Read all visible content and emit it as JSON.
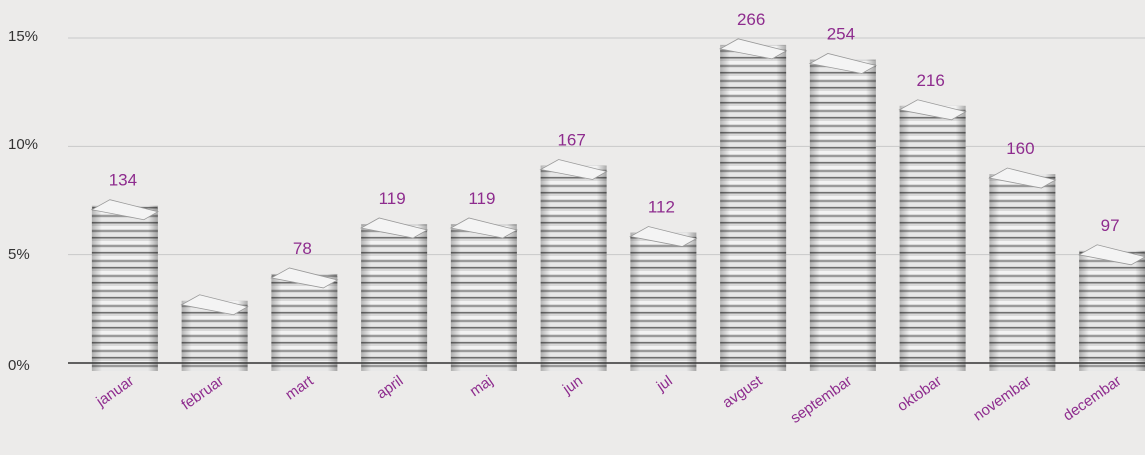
{
  "chart_data": {
    "type": "bar",
    "categories": [
      "januar",
      "februar",
      "mart",
      "april",
      "maj",
      "jun",
      "jul",
      "avgust",
      "septembar",
      "oktobar",
      "novembar",
      "decembar"
    ],
    "values": [
      134,
      56,
      78,
      119,
      119,
      167,
      112,
      266,
      254,
      216,
      160,
      97
    ],
    "labels": [
      "134",
      "",
      "78",
      "119",
      "119",
      "167",
      "112",
      "266",
      "254",
      "216",
      "160",
      "97"
    ],
    "y_axis_ticks": [
      "0%",
      "5%",
      "10%",
      "15%"
    ],
    "ylim_percent": [
      0,
      15
    ],
    "grid": true,
    "bar_style": "stacked-newspapers",
    "colors": {
      "label": "#8e2c8e",
      "axis_text": "#333333",
      "grid": "#c9c9c9",
      "paper_light": "#e6e6e6",
      "paper_dark": "#7a7a7a"
    }
  }
}
